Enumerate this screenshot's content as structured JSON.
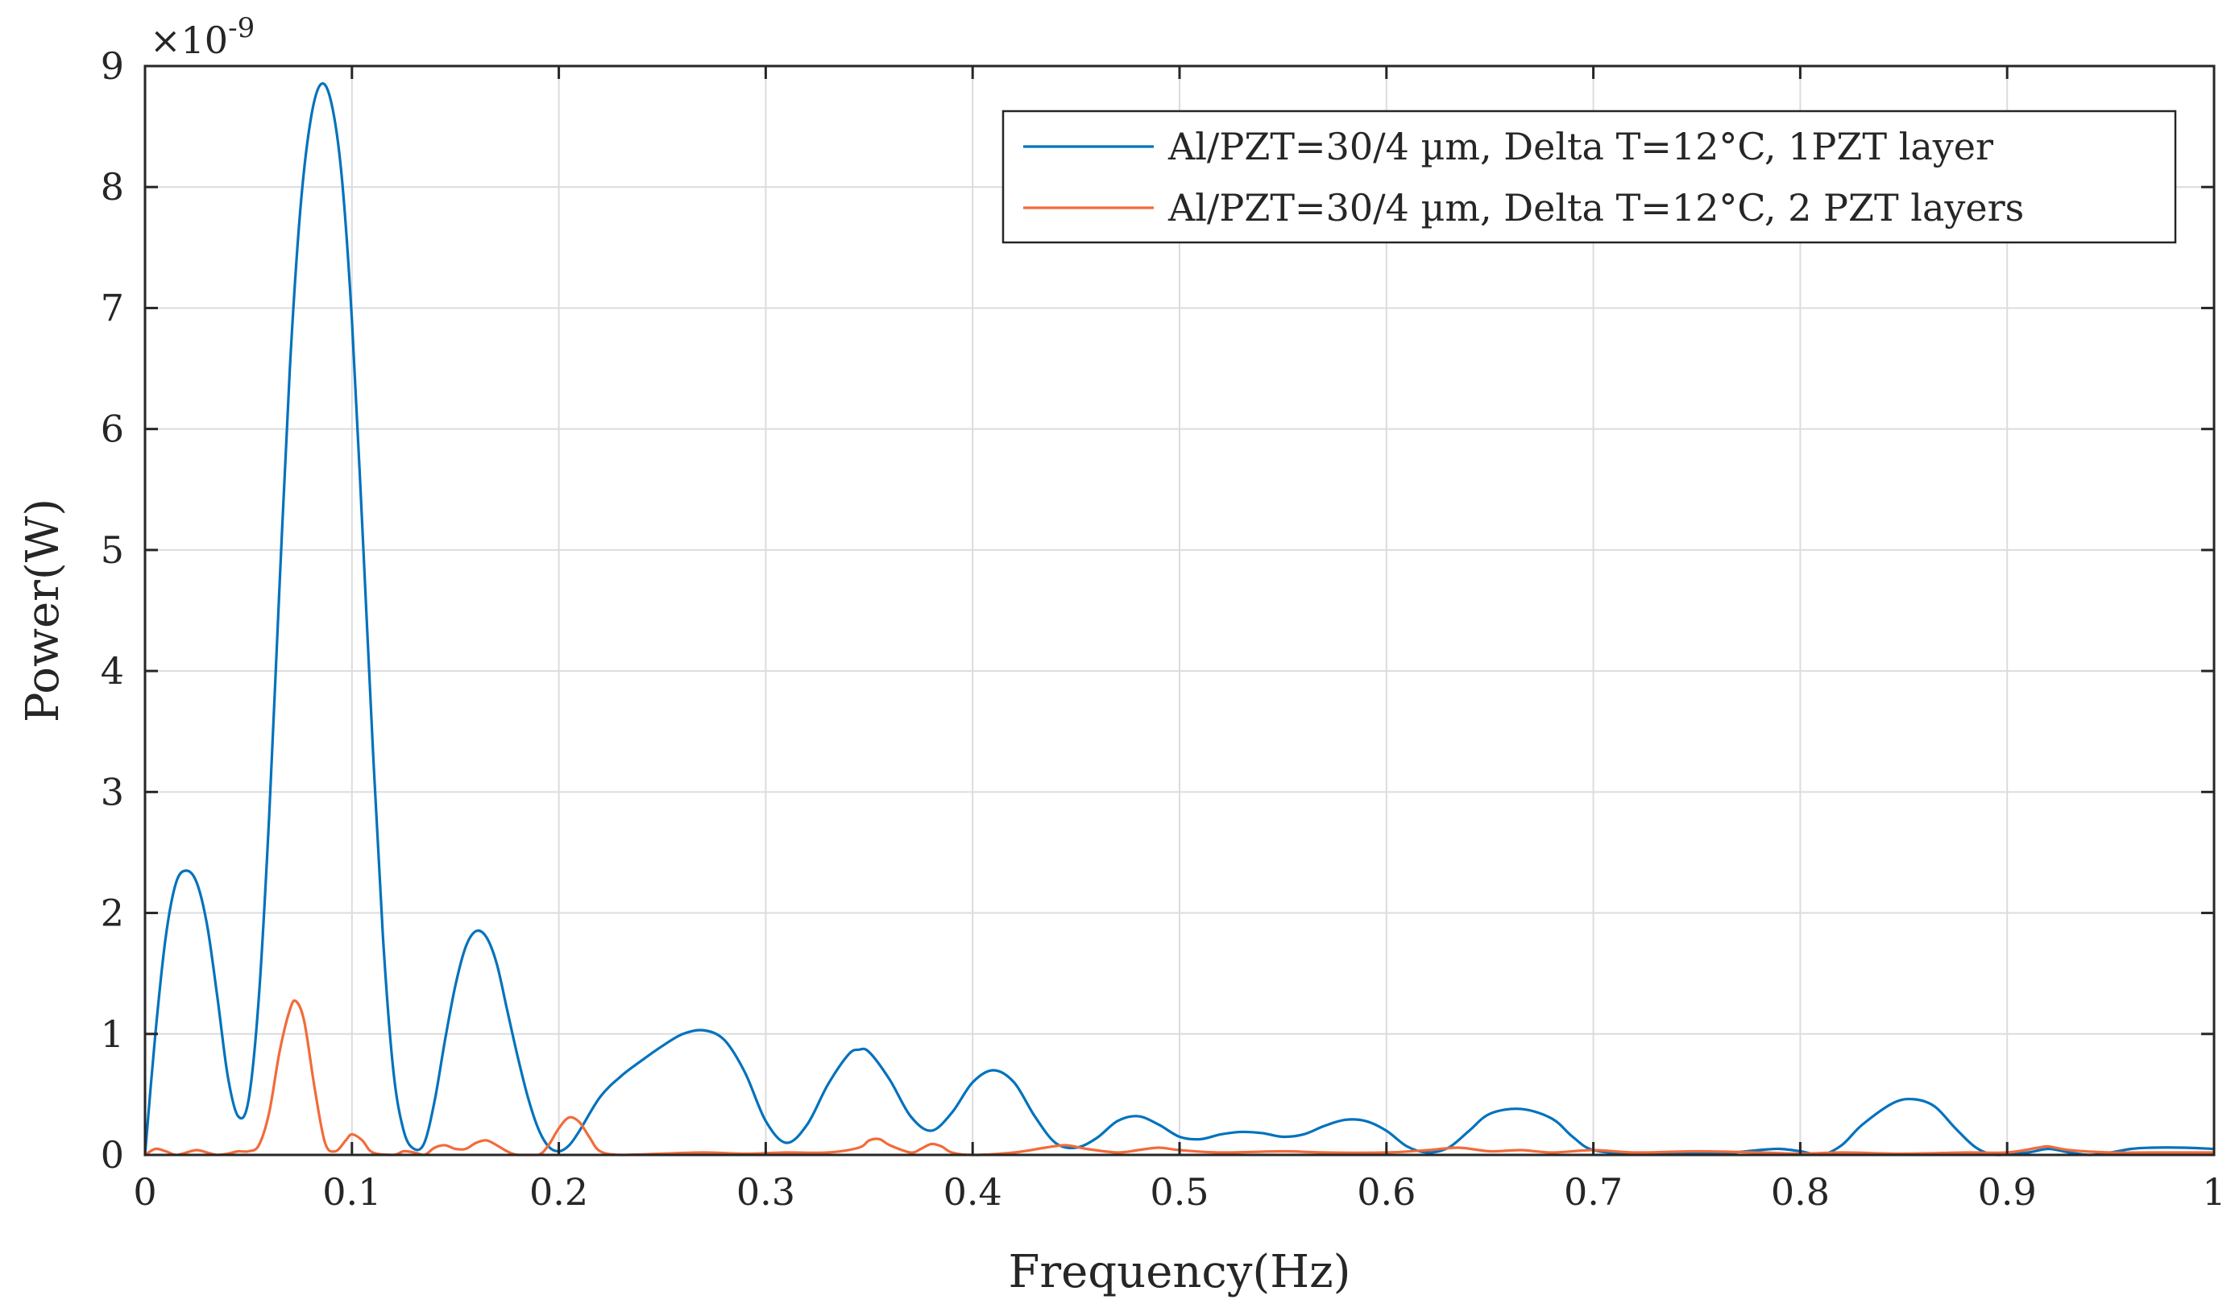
{
  "chart_data": {
    "type": "line",
    "xlabel": "Frequency(Hz)",
    "ylabel": "Power(W)",
    "y_exponent_label": "×10",
    "y_exponent_power": "-9",
    "xlim": [
      0,
      1
    ],
    "ylim": [
      0,
      9
    ],
    "x_ticks": [
      0,
      0.1,
      0.2,
      0.3,
      0.4,
      0.5,
      0.6,
      0.7,
      0.8,
      0.9,
      1
    ],
    "x_tick_labels": [
      "0",
      "0.1",
      "0.2",
      "0.3",
      "0.4",
      "0.5",
      "0.6",
      "0.7",
      "0.8",
      "0.9",
      "1"
    ],
    "y_ticks": [
      0,
      1,
      2,
      3,
      4,
      5,
      6,
      7,
      8,
      9
    ],
    "y_tick_labels": [
      "0",
      "1",
      "2",
      "3",
      "4",
      "5",
      "6",
      "7",
      "8",
      "9"
    ],
    "grid": true,
    "legend_position": "top-right",
    "series": [
      {
        "name": "Al/PZT=30/4 µm, Delta T=12°C, 1PZT layer",
        "color": "#0072BD",
        "points": [
          [
            0,
            0
          ],
          [
            0.005,
            1.0
          ],
          [
            0.01,
            1.8
          ],
          [
            0.015,
            2.25
          ],
          [
            0.02,
            2.35
          ],
          [
            0.025,
            2.25
          ],
          [
            0.03,
            1.9
          ],
          [
            0.035,
            1.3
          ],
          [
            0.04,
            0.65
          ],
          [
            0.045,
            0.32
          ],
          [
            0.05,
            0.45
          ],
          [
            0.055,
            1.3
          ],
          [
            0.06,
            2.8
          ],
          [
            0.065,
            4.7
          ],
          [
            0.07,
            6.5
          ],
          [
            0.075,
            7.8
          ],
          [
            0.08,
            8.55
          ],
          [
            0.085,
            8.85
          ],
          [
            0.09,
            8.7
          ],
          [
            0.095,
            8.1
          ],
          [
            0.1,
            6.9
          ],
          [
            0.105,
            5.2
          ],
          [
            0.11,
            3.4
          ],
          [
            0.115,
            1.8
          ],
          [
            0.12,
            0.7
          ],
          [
            0.125,
            0.2
          ],
          [
            0.13,
            0.05
          ],
          [
            0.135,
            0.1
          ],
          [
            0.14,
            0.45
          ],
          [
            0.145,
            0.95
          ],
          [
            0.15,
            1.4
          ],
          [
            0.155,
            1.72
          ],
          [
            0.16,
            1.85
          ],
          [
            0.165,
            1.8
          ],
          [
            0.17,
            1.58
          ],
          [
            0.175,
            1.2
          ],
          [
            0.18,
            0.82
          ],
          [
            0.185,
            0.48
          ],
          [
            0.19,
            0.22
          ],
          [
            0.195,
            0.07
          ],
          [
            0.2,
            0.03
          ],
          [
            0.205,
            0.08
          ],
          [
            0.21,
            0.2
          ],
          [
            0.22,
            0.48
          ],
          [
            0.23,
            0.65
          ],
          [
            0.24,
            0.78
          ],
          [
            0.25,
            0.9
          ],
          [
            0.26,
            1.0
          ],
          [
            0.27,
            1.03
          ],
          [
            0.28,
            0.95
          ],
          [
            0.29,
            0.68
          ],
          [
            0.3,
            0.28
          ],
          [
            0.31,
            0.1
          ],
          [
            0.32,
            0.25
          ],
          [
            0.33,
            0.58
          ],
          [
            0.34,
            0.83
          ],
          [
            0.345,
            0.87
          ],
          [
            0.35,
            0.85
          ],
          [
            0.36,
            0.62
          ],
          [
            0.37,
            0.32
          ],
          [
            0.38,
            0.2
          ],
          [
            0.39,
            0.35
          ],
          [
            0.4,
            0.6
          ],
          [
            0.41,
            0.7
          ],
          [
            0.42,
            0.6
          ],
          [
            0.43,
            0.32
          ],
          [
            0.44,
            0.1
          ],
          [
            0.45,
            0.06
          ],
          [
            0.46,
            0.14
          ],
          [
            0.47,
            0.28
          ],
          [
            0.48,
            0.32
          ],
          [
            0.49,
            0.25
          ],
          [
            0.5,
            0.15
          ],
          [
            0.51,
            0.13
          ],
          [
            0.52,
            0.17
          ],
          [
            0.53,
            0.19
          ],
          [
            0.54,
            0.18
          ],
          [
            0.55,
            0.15
          ],
          [
            0.56,
            0.17
          ],
          [
            0.57,
            0.24
          ],
          [
            0.58,
            0.29
          ],
          [
            0.59,
            0.28
          ],
          [
            0.6,
            0.2
          ],
          [
            0.61,
            0.07
          ],
          [
            0.62,
            0.02
          ],
          [
            0.63,
            0.06
          ],
          [
            0.64,
            0.2
          ],
          [
            0.65,
            0.34
          ],
          [
            0.665,
            0.38
          ],
          [
            0.68,
            0.3
          ],
          [
            0.69,
            0.15
          ],
          [
            0.7,
            0.04
          ],
          [
            0.72,
            0.01
          ],
          [
            0.74,
            0.02
          ],
          [
            0.76,
            0.01
          ],
          [
            0.78,
            0.04
          ],
          [
            0.79,
            0.05
          ],
          [
            0.8,
            0.03
          ],
          [
            0.81,
            0.0
          ],
          [
            0.82,
            0.08
          ],
          [
            0.83,
            0.25
          ],
          [
            0.845,
            0.43
          ],
          [
            0.855,
            0.46
          ],
          [
            0.865,
            0.4
          ],
          [
            0.875,
            0.22
          ],
          [
            0.885,
            0.06
          ],
          [
            0.895,
            0.0
          ],
          [
            0.91,
            0.02
          ],
          [
            0.92,
            0.05
          ],
          [
            0.93,
            0.02
          ],
          [
            0.94,
            0.0
          ],
          [
            0.95,
            0.02
          ],
          [
            0.96,
            0.05
          ],
          [
            0.97,
            0.06
          ],
          [
            0.985,
            0.06
          ],
          [
            1.0,
            0.05
          ]
        ]
      },
      {
        "name": "Al/PZT=30/4 µm, Delta T=12°C,  2 PZT layers",
        "color": "#F26B3A",
        "points": [
          [
            0,
            0.0
          ],
          [
            0.005,
            0.05
          ],
          [
            0.01,
            0.03
          ],
          [
            0.015,
            0.0
          ],
          [
            0.02,
            0.02
          ],
          [
            0.025,
            0.04
          ],
          [
            0.03,
            0.02
          ],
          [
            0.035,
            0.0
          ],
          [
            0.04,
            0.01
          ],
          [
            0.045,
            0.03
          ],
          [
            0.05,
            0.03
          ],
          [
            0.055,
            0.08
          ],
          [
            0.06,
            0.35
          ],
          [
            0.065,
            0.85
          ],
          [
            0.07,
            1.2
          ],
          [
            0.073,
            1.27
          ],
          [
            0.077,
            1.1
          ],
          [
            0.082,
            0.55
          ],
          [
            0.087,
            0.1
          ],
          [
            0.092,
            0.03
          ],
          [
            0.097,
            0.12
          ],
          [
            0.1,
            0.17
          ],
          [
            0.105,
            0.12
          ],
          [
            0.11,
            0.02
          ],
          [
            0.12,
            0.0
          ],
          [
            0.125,
            0.03
          ],
          [
            0.13,
            0.02
          ],
          [
            0.135,
            0.0
          ],
          [
            0.14,
            0.06
          ],
          [
            0.145,
            0.08
          ],
          [
            0.15,
            0.05
          ],
          [
            0.155,
            0.05
          ],
          [
            0.16,
            0.1
          ],
          [
            0.165,
            0.12
          ],
          [
            0.17,
            0.08
          ],
          [
            0.175,
            0.03
          ],
          [
            0.18,
            0.0
          ],
          [
            0.19,
            0.0
          ],
          [
            0.195,
            0.08
          ],
          [
            0.2,
            0.22
          ],
          [
            0.205,
            0.31
          ],
          [
            0.21,
            0.27
          ],
          [
            0.215,
            0.14
          ],
          [
            0.22,
            0.03
          ],
          [
            0.23,
            0.0
          ],
          [
            0.25,
            0.01
          ],
          [
            0.27,
            0.02
          ],
          [
            0.29,
            0.01
          ],
          [
            0.31,
            0.02
          ],
          [
            0.33,
            0.02
          ],
          [
            0.345,
            0.06
          ],
          [
            0.35,
            0.12
          ],
          [
            0.355,
            0.13
          ],
          [
            0.36,
            0.08
          ],
          [
            0.37,
            0.02
          ],
          [
            0.375,
            0.05
          ],
          [
            0.38,
            0.09
          ],
          [
            0.385,
            0.07
          ],
          [
            0.39,
            0.02
          ],
          [
            0.4,
            0.0
          ],
          [
            0.42,
            0.02
          ],
          [
            0.435,
            0.06
          ],
          [
            0.445,
            0.08
          ],
          [
            0.455,
            0.05
          ],
          [
            0.47,
            0.02
          ],
          [
            0.48,
            0.04
          ],
          [
            0.49,
            0.06
          ],
          [
            0.5,
            0.04
          ],
          [
            0.52,
            0.02
          ],
          [
            0.55,
            0.03
          ],
          [
            0.57,
            0.02
          ],
          [
            0.6,
            0.02
          ],
          [
            0.62,
            0.04
          ],
          [
            0.635,
            0.06
          ],
          [
            0.65,
            0.03
          ],
          [
            0.665,
            0.04
          ],
          [
            0.68,
            0.02
          ],
          [
            0.7,
            0.04
          ],
          [
            0.72,
            0.02
          ],
          [
            0.75,
            0.03
          ],
          [
            0.78,
            0.02
          ],
          [
            0.8,
            0.01
          ],
          [
            0.82,
            0.02
          ],
          [
            0.85,
            0.01
          ],
          [
            0.88,
            0.02
          ],
          [
            0.9,
            0.02
          ],
          [
            0.915,
            0.06
          ],
          [
            0.92,
            0.07
          ],
          [
            0.93,
            0.04
          ],
          [
            0.95,
            0.02
          ],
          [
            0.97,
            0.02
          ],
          [
            1.0,
            0.02
          ]
        ]
      }
    ]
  }
}
